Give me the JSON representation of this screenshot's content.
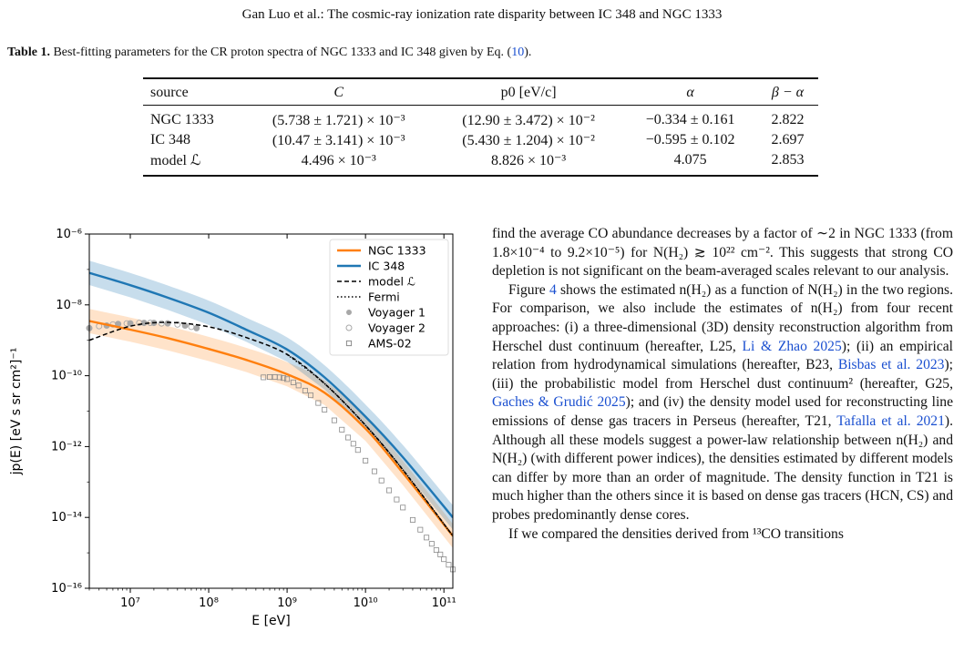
{
  "header": {
    "text": "Gan Luo  et al.: The cosmic-ray ionization rate disparity between IC 348 and NGC 1333"
  },
  "table": {
    "caption_label": "Table 1.",
    "caption_text": "Best-fitting parameters for the CR proton spectra of NGC 1333 and IC 348 given by Eq. (",
    "caption_ref": "10",
    "caption_end": ").",
    "headers": [
      "source",
      "C",
      "p0 [eV/c]",
      "α",
      "β − α"
    ],
    "rows": [
      [
        "NGC 1333",
        "(5.738 ± 1.721) × 10⁻³",
        "(12.90 ± 3.472) × 10⁻²",
        "−0.334 ± 0.161",
        "2.822"
      ],
      [
        "IC 348",
        "(10.47 ± 3.141) × 10⁻³",
        "(5.430 ± 1.204) × 10⁻²",
        "−0.595 ± 0.102",
        "2.697"
      ],
      [
        "model ℒ",
        "4.496 × 10⁻³",
        "8.826 × 10⁻³",
        "4.075",
        "2.853"
      ]
    ]
  },
  "chart_data": {
    "type": "line",
    "xlabel": "E [eV]",
    "ylabel": "jp(E) [eV s sr cm²]⁻¹",
    "xscale": "log",
    "yscale": "log",
    "xlim": [
      3000000.0,
      130000000000.0
    ],
    "ylim": [
      1e-16,
      1e-06
    ],
    "xticks": [
      "10⁷",
      "10⁸",
      "10⁹",
      "10¹⁰",
      "10¹¹"
    ],
    "yticks": [
      "10⁻¹⁶",
      "10⁻¹⁴",
      "10⁻¹²",
      "10⁻¹⁰",
      "10⁻⁸",
      "10⁻⁶"
    ],
    "legend_position": "top-right",
    "series": [
      {
        "name": "NGC 1333",
        "style": "solid",
        "color": "#ff7f0e",
        "x": [
          3000000.0,
          10000000.0,
          30000000.0,
          100000000.0,
          300000000.0,
          1000000000.0,
          3000000000.0,
          10000000000.0,
          30000000000.0,
          130000000000.0
        ],
        "y": [
          3.5e-09,
          2e-09,
          1.15e-09,
          5.7e-10,
          2.8e-10,
          1.1e-10,
          3.3e-11,
          3.2e-12,
          1.8e-13,
          3e-15
        ]
      },
      {
        "name": "IC 348",
        "style": "solid",
        "color": "#1f77b4",
        "x": [
          3000000.0,
          10000000.0,
          30000000.0,
          100000000.0,
          300000000.0,
          1000000000.0,
          3000000000.0,
          10000000000.0,
          30000000000.0,
          130000000000.0
        ],
        "y": [
          8e-08,
          3.6e-08,
          1.6e-08,
          6e-09,
          2e-09,
          5.5e-10,
          9e-11,
          7e-12,
          5e-13,
          1e-14
        ]
      },
      {
        "name": "model ℒ",
        "style": "dashed",
        "color": "#000000",
        "x": [
          3000000.0,
          10000000.0,
          30000000.0,
          100000000.0,
          300000000.0,
          1000000000.0,
          3000000000.0,
          10000000000.0,
          30000000000.0,
          130000000000.0
        ],
        "y": [
          1e-09,
          2.5e-09,
          3.2e-09,
          2.4e-09,
          1.2e-09,
          4e-10,
          6e-11,
          4e-12,
          2.2e-13,
          3e-15
        ]
      },
      {
        "name": "Fermi",
        "style": "dotted",
        "color": "#000000",
        "x": [
          1000000000.0,
          3000000000.0,
          10000000000.0,
          30000000000.0,
          130000000000.0
        ],
        "y": [
          4e-10,
          6e-11,
          4e-12,
          2.2e-13,
          3e-15
        ]
      },
      {
        "name": "Voyager 1",
        "style": "marker-filled-circle",
        "color": "#999999",
        "x": [
          3000000.0,
          5000000.0,
          7000000.0,
          10000000.0,
          15000000.0,
          20000000.0,
          30000000.0,
          50000000.0,
          70000000.0
        ],
        "y": [
          2.2e-09,
          2.6e-09,
          2.9e-09,
          3e-09,
          3.1e-09,
          3.1e-09,
          3e-09,
          2.6e-09,
          2.2e-09
        ]
      },
      {
        "name": "Voyager 2",
        "style": "marker-open-circle",
        "color": "#999999",
        "x": [
          4000000.0,
          6000000.0,
          9000000.0,
          13000000.0,
          18000000.0,
          25000000.0,
          40000000.0,
          60000000.0
        ],
        "y": [
          2.5e-09,
          2.8e-09,
          3e-09,
          3.1e-09,
          3.1e-09,
          3e-09,
          2.8e-09,
          2.4e-09
        ]
      },
      {
        "name": "AMS-02",
        "style": "marker-open-square",
        "color": "#999999",
        "x": [
          500000000.0,
          600000000.0,
          700000000.0,
          800000000.0,
          900000000.0,
          1000000000.0,
          1200000000.0,
          1400000000.0,
          1700000000.0,
          2000000000.0,
          2500000000.0,
          3000000000.0,
          4000000000.0,
          5000000000.0,
          6000000000.0,
          7000000000.0,
          8000000000.0,
          10000000000.0,
          13000000000.0,
          16000000000.0,
          20000000000.0,
          25000000000.0,
          30000000000.0,
          40000000000.0,
          50000000000.0,
          60000000000.0,
          70000000000.0,
          80000000000.0,
          90000000000.0,
          100000000000.0,
          115000000000.0,
          130000000000.0
        ],
        "y": [
          9e-11,
          9.2e-11,
          9.2e-11,
          9e-11,
          8.6e-11,
          8e-11,
          6.5e-11,
          5.3e-11,
          3.8e-11,
          2.8e-11,
          1.7e-11,
          1.1e-11,
          5.5e-12,
          3e-12,
          1.8e-12,
          1.2e-12,
          8e-13,
          4e-13,
          2e-13,
          1.1e-13,
          5.8e-14,
          3.2e-14,
          1.9e-14,
          8.5e-15,
          4.5e-15,
          2.7e-15,
          1.8e-15,
          1.2e-15,
          9e-16,
          6.6e-16,
          4.6e-16,
          3.4e-16
        ]
      }
    ]
  },
  "body": {
    "p1": "find the average CO abundance decreases by a factor of ∼2 in NGC 1333 (from 1.8×10⁻⁴ to 9.2×10⁻⁵) for N(H₂) ≳ 10²² cm⁻². This suggests that strong CO depletion is not significant on the beam-averaged scales relevant to our analysis.",
    "p2a": "Figure ",
    "p2_fig": "4",
    "p2b": " shows the estimated n(H₂) as a function of N(H₂) in the two regions. For comparison, we also include the estimates of n(H₂) from four recent approaches: (i) a three-dimensional (3D) density reconstruction algorithm from Herschel dust continuum (hereafter, L25, ",
    "p2_ref1": "Li & Zhao 2025",
    "p2c": "); (ii) an empirical relation from hydrodynamical simulations (hereafter, B23, ",
    "p2_ref2": "Bisbas et al. 2023",
    "p2d": "); (iii) the probabilistic model from Herschel dust continuum² (hereafter, G25, ",
    "p2_ref3": "Gaches & Grudić 2025",
    "p2e": "); and (iv) the density model used for reconstructing line emissions of dense gas tracers in Perseus (hereafter, T21, ",
    "p2_ref4": "Tafalla et al. 2021",
    "p2f": "). Although all these models suggest a power-law relationship between n(H₂) and N(H₂) (with different power indices), the densities estimated by different models can differ by more than an order of magnitude. The density function in T21 is much higher than the others since it is based on dense gas tracers (HCN, CS) and probes predominantly dense cores.",
    "p3": "If we compared the densities derived from ¹³CO transitions"
  },
  "colors": {
    "link": "#1a4fd0",
    "ngc1333": "#ff7f0e",
    "ic348": "#1f77b4"
  }
}
